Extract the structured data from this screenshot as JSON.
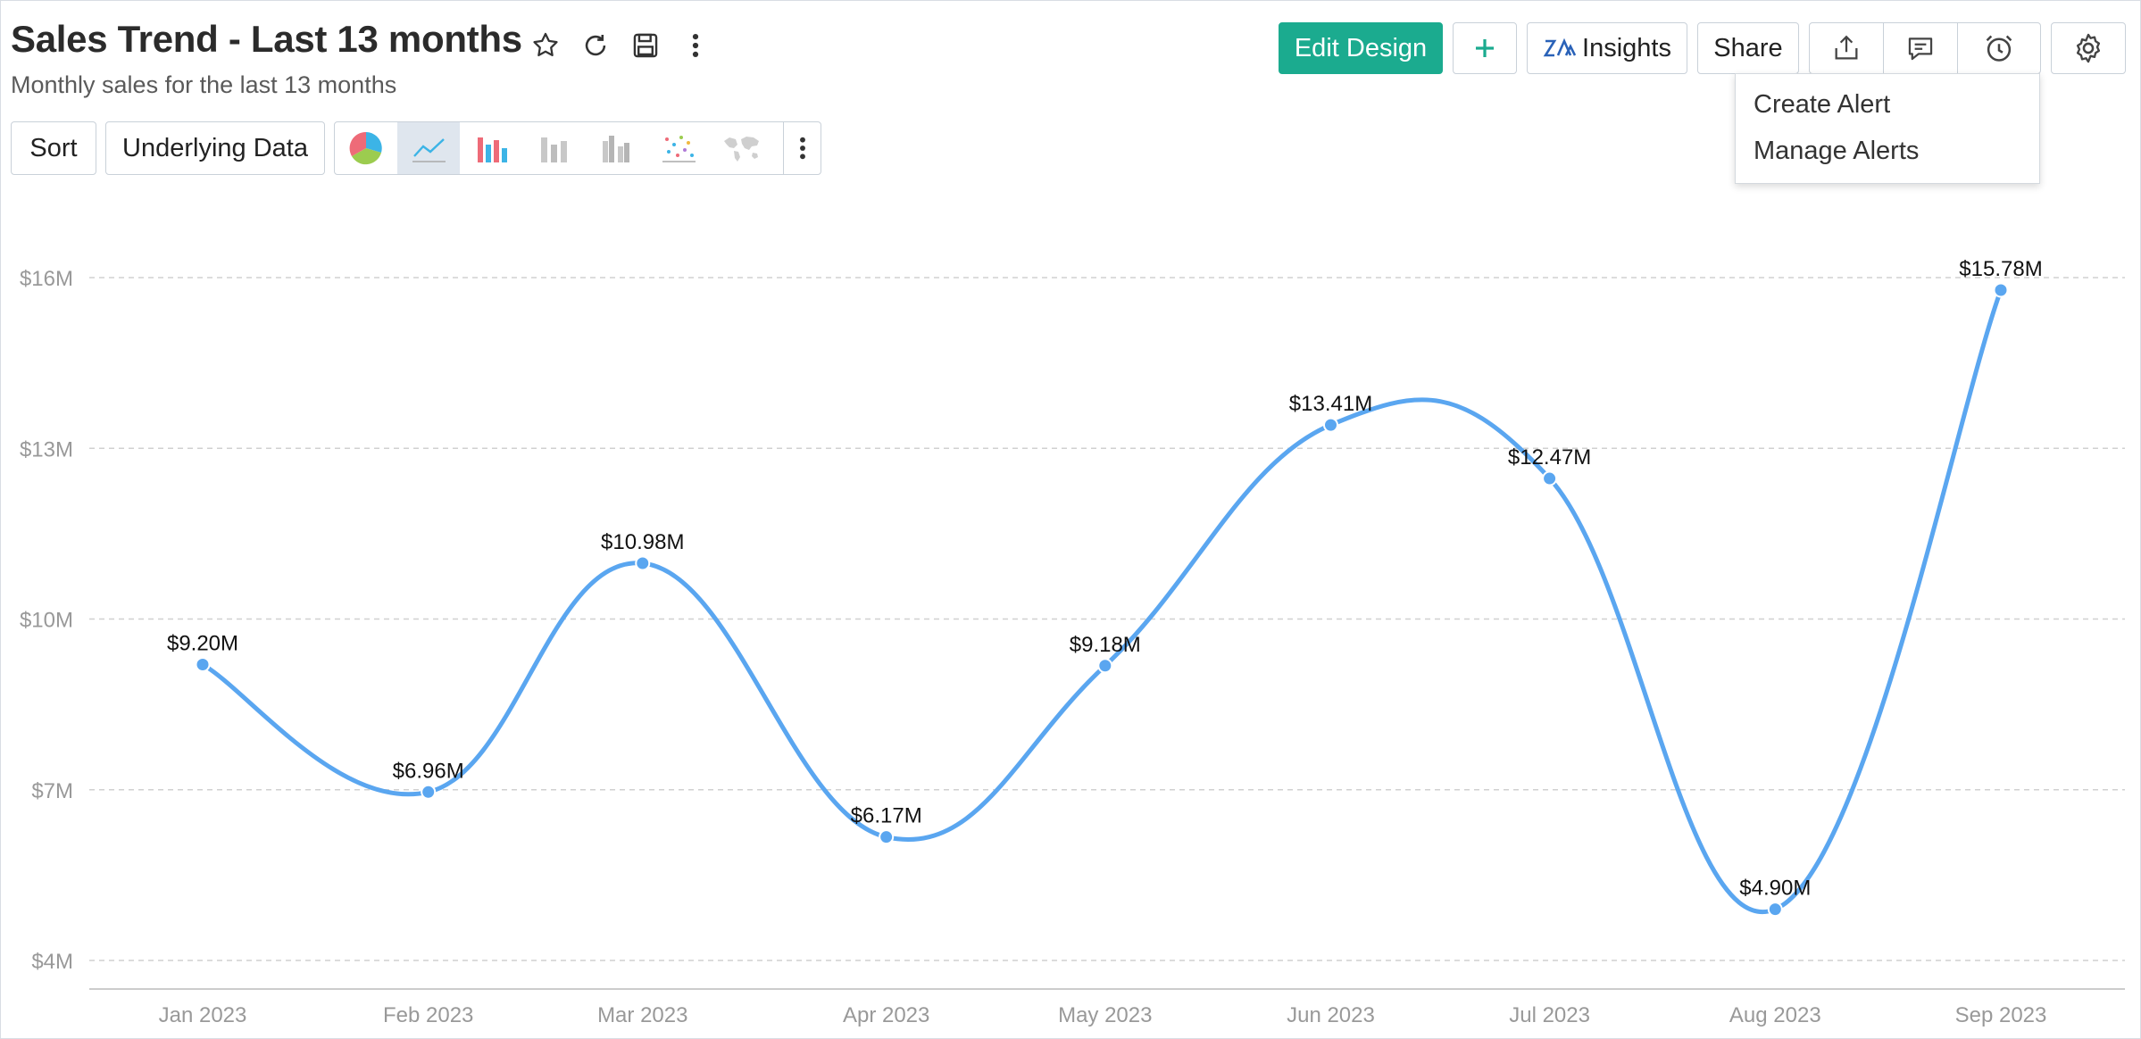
{
  "header": {
    "title": "Sales Trend - Last 13 months",
    "subtitle": "Monthly sales for the last 13 months"
  },
  "title_icons": [
    "star-icon",
    "refresh-icon",
    "save-icon",
    "kebab-menu-icon"
  ],
  "toolbar": {
    "edit_design_label": "Edit Design",
    "add_icon": "plus-icon",
    "insights_label": "Insights",
    "share_label": "Share",
    "export_icon": "export-icon",
    "comment_icon": "comment-icon",
    "alert_icon": "alarm-clock-icon",
    "settings_icon": "gear-icon"
  },
  "alert_menu": {
    "items": [
      "Create Alert",
      "Manage Alerts"
    ]
  },
  "view_controls": {
    "sort_label": "Sort",
    "underlying_data_label": "Underlying Data",
    "chart_types": [
      "pie",
      "line",
      "bar",
      "stacked-bar",
      "grouped-bar",
      "scatter",
      "map"
    ],
    "active_chart_type": "line"
  },
  "colors": {
    "accent": "#1bab8f",
    "series_line": "#5aa6f0",
    "grid": "#d0d0d0",
    "axis_text": "#999999"
  },
  "chart_data": {
    "type": "line",
    "categories": [
      "Jan 2023",
      "Feb 2023",
      "Mar 2023",
      "Apr 2023",
      "May 2023",
      "Jun 2023",
      "Jul 2023",
      "Aug 2023",
      "Sep 2023"
    ],
    "x": [
      0,
      1,
      1.95,
      3.03,
      4.0,
      5.0,
      5.97,
      6.97,
      7.97
    ],
    "series": [
      {
        "values": [
          9.2,
          6.96,
          10.98,
          6.17,
          9.18,
          13.41,
          12.47,
          4.9,
          15.78
        ]
      }
    ],
    "data_labels": [
      "$9.20M",
      "$6.96M",
      "$10.98M",
      "$6.17M",
      "$9.18M",
      "$13.41M",
      "$12.47M",
      "$4.90M",
      "$15.78M"
    ],
    "y_ticks": [
      4,
      7,
      10,
      13,
      16
    ],
    "y_tick_labels": [
      "$4M",
      "$7M",
      "$10M",
      "$13M",
      "$16M"
    ],
    "ylim": [
      4,
      16
    ],
    "smooth": true,
    "grid": "horizontal-dashed",
    "legend": "none"
  }
}
